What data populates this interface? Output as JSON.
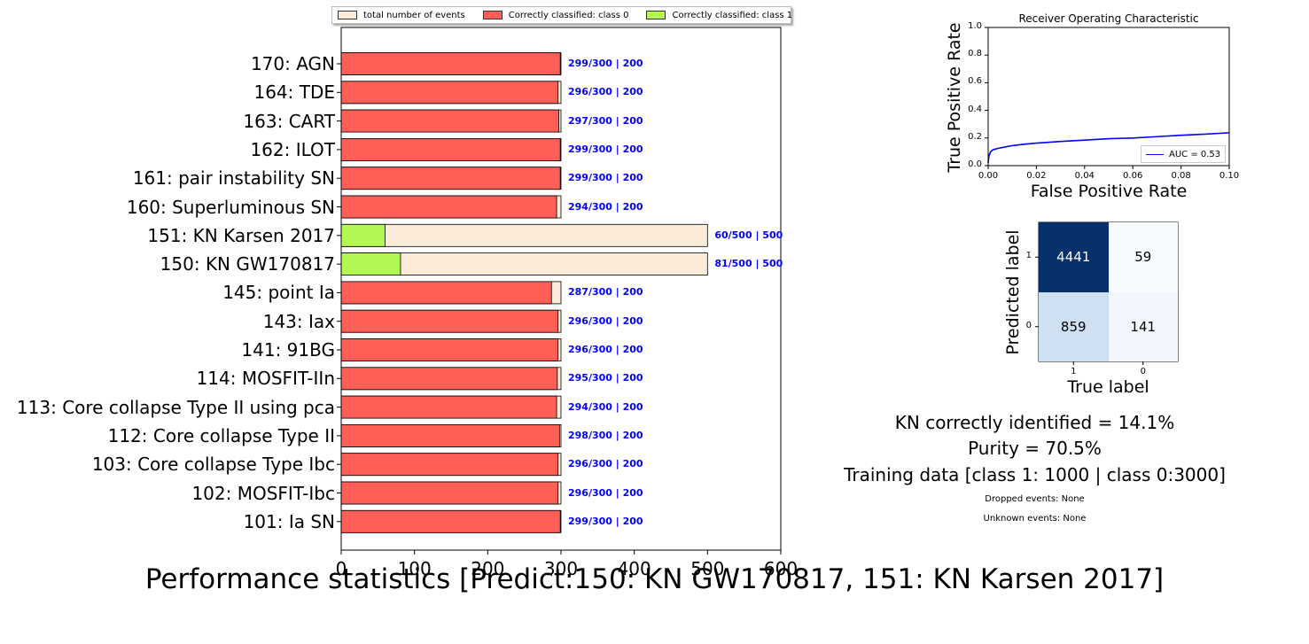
{
  "title": "Performance statistics [Predict:150: KN GW170817, 151: KN Karsen 2017]",
  "legend": [
    {
      "label": "total number of events",
      "color": "#fdebd9"
    },
    {
      "label": "Correctly classified: class 0",
      "color": "#ff5f57"
    },
    {
      "label": "Correctly classified: class 1",
      "color": "#b3f753"
    }
  ],
  "chart_data": [
    {
      "type": "bar",
      "orientation": "horizontal",
      "xlim": [
        0,
        600
      ],
      "xticks": [
        "0",
        "100",
        "200",
        "300",
        "400",
        "500",
        "600"
      ],
      "categories": [
        "170: AGN",
        "164: TDE",
        "163: CART",
        "162: ILOT",
        "161: pair instability SN",
        "160: Superluminous SN",
        "151: KN Karsen 2017",
        "150: KN GW170817",
        "145: point Ia",
        "143: Iax",
        "141: 91BG",
        "114: MOSFIT-IIn",
        "113: Core collapse Type II using pca ",
        "112: Core collapse Type II",
        "103: Core collapse Type Ibc",
        "102: MOSFIT-Ibc",
        "101: Ia SN"
      ],
      "series": [
        {
          "name": "total number of events",
          "values": [
            300,
            300,
            300,
            300,
            300,
            300,
            500,
            500,
            300,
            300,
            300,
            300,
            300,
            300,
            300,
            300,
            300
          ]
        },
        {
          "name": "Correctly classified",
          "values": [
            299,
            296,
            297,
            299,
            299,
            294,
            60,
            81,
            287,
            296,
            296,
            295,
            294,
            298,
            296,
            296,
            299
          ]
        }
      ],
      "bar_class": [
        0,
        0,
        0,
        0,
        0,
        0,
        1,
        1,
        0,
        0,
        0,
        0,
        0,
        0,
        0,
        0,
        0
      ],
      "annotations": [
        "299/300 | 200",
        "296/300 | 200",
        "297/300 | 200",
        "299/300 | 200",
        "299/300 | 200",
        "294/300 | 200",
        "60/500 | 500",
        "81/500 | 500",
        "287/300 | 200",
        "296/300 | 200",
        "296/300 | 200",
        "295/300 | 200",
        "294/300 | 200",
        "298/300 | 200",
        "296/300 | 200",
        "296/300 | 200",
        "299/300 | 200"
      ],
      "legend_placement": "top",
      "grid": false
    },
    {
      "type": "line",
      "title": "Receiver Operating Characteristic",
      "xlabel": "False Positive Rate",
      "ylabel": "True Positive Rate",
      "xlim": [
        0,
        0.1
      ],
      "ylim": [
        0,
        1
      ],
      "xticks": [
        "0.00",
        "0.02",
        "0.04",
        "0.06",
        "0.08",
        "0.10"
      ],
      "yticks": [
        "0.0",
        "0.2",
        "0.4",
        "0.6",
        "0.8",
        "1.0"
      ],
      "x": [
        0,
        0.0003,
        0.001,
        0.002,
        0.004,
        0.007,
        0.01,
        0.015,
        0.02,
        0.03,
        0.04,
        0.05,
        0.06,
        0.07,
        0.08,
        0.09,
        0.1
      ],
      "y": [
        0.02,
        0.07,
        0.1,
        0.115,
        0.125,
        0.135,
        0.145,
        0.155,
        0.163,
        0.175,
        0.185,
        0.195,
        0.2,
        0.21,
        0.22,
        0.228,
        0.238
      ],
      "series_name": "AUC = 0.53",
      "line_color": "#0000ff",
      "legend_placement": "lower right",
      "grid": false
    },
    {
      "type": "heatmap",
      "xlabel": "True label",
      "ylabel": "Predicted label",
      "xticks": [
        "1",
        "0"
      ],
      "yticks": [
        "1",
        "0"
      ],
      "matrix": [
        [
          4441,
          59
        ],
        [
          859,
          141
        ]
      ],
      "colormap": "Blues"
    }
  ],
  "stats": {
    "kn": "KN correctly identified = 14.1%",
    "purity": "Purity = 70.5%",
    "training": "Training data [class 1: 1000 | class 0:3000]",
    "dropped": "Dropped events: None",
    "unknown": "Unknown events: None"
  }
}
